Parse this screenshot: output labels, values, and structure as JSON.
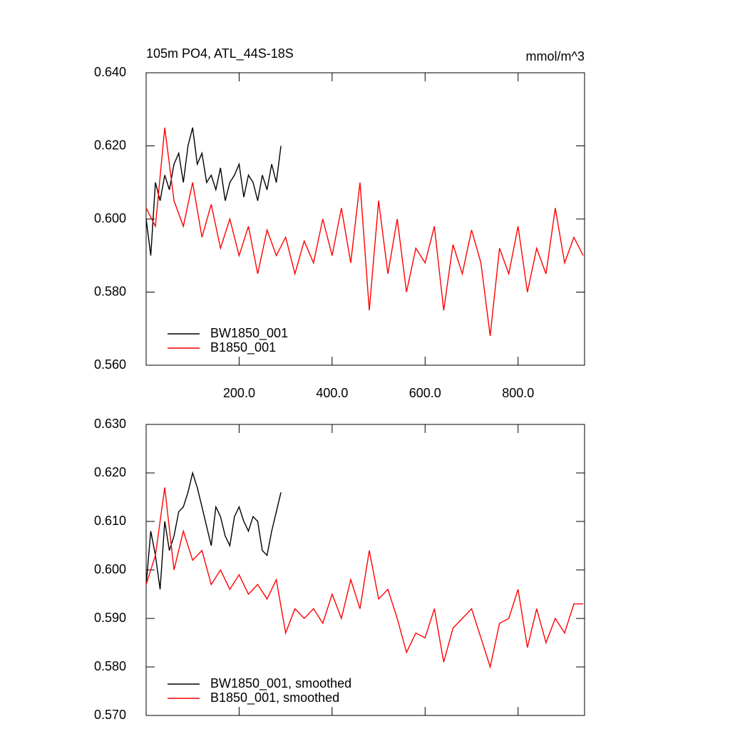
{
  "chart_data": [
    {
      "type": "line",
      "title": "105m PO4, ATL_44S-18S",
      "units": "mmol/m^3",
      "xlim": [
        0,
        943
      ],
      "xticks": [
        {
          "value": 200,
          "label": "200.0"
        },
        {
          "value": 400,
          "label": "400.0"
        },
        {
          "value": 600,
          "label": "600.0"
        },
        {
          "value": 800,
          "label": "800.0"
        }
      ],
      "ylim": [
        0.56,
        0.64
      ],
      "yticks": [
        {
          "value": 0.56,
          "label": "0.560"
        },
        {
          "value": 0.58,
          "label": "0.580"
        },
        {
          "value": 0.6,
          "label": "0.600"
        },
        {
          "value": 0.62,
          "label": "0.620"
        },
        {
          "value": 0.64,
          "label": "0.640"
        }
      ],
      "series": [
        {
          "name": "BW1850_001",
          "color": "#000000",
          "x": [
            0,
            10,
            20,
            30,
            40,
            50,
            60,
            70,
            80,
            90,
            100,
            110,
            120,
            130,
            140,
            150,
            160,
            170,
            180,
            190,
            200,
            210,
            220,
            230,
            240,
            250,
            260,
            270,
            280,
            290
          ],
          "values": [
            0.6,
            0.59,
            0.61,
            0.605,
            0.612,
            0.608,
            0.615,
            0.618,
            0.61,
            0.62,
            0.625,
            0.615,
            0.618,
            0.61,
            0.612,
            0.608,
            0.614,
            0.605,
            0.61,
            0.612,
            0.615,
            0.606,
            0.612,
            0.61,
            0.605,
            0.612,
            0.608,
            0.615,
            0.61,
            0.62
          ]
        },
        {
          "name": "B1850_001",
          "color": "#ff0000",
          "x": [
            0,
            20,
            40,
            60,
            80,
            100,
            120,
            140,
            160,
            180,
            200,
            220,
            240,
            260,
            280,
            300,
            320,
            340,
            360,
            380,
            400,
            420,
            440,
            460,
            480,
            500,
            520,
            540,
            560,
            580,
            600,
            620,
            640,
            660,
            680,
            700,
            720,
            740,
            760,
            780,
            800,
            820,
            840,
            860,
            880,
            900,
            920,
            940
          ],
          "values": [
            0.603,
            0.598,
            0.625,
            0.605,
            0.598,
            0.61,
            0.595,
            0.604,
            0.592,
            0.6,
            0.59,
            0.598,
            0.585,
            0.597,
            0.59,
            0.595,
            0.585,
            0.594,
            0.588,
            0.6,
            0.59,
            0.603,
            0.588,
            0.61,
            0.575,
            0.605,
            0.585,
            0.6,
            0.58,
            0.592,
            0.588,
            0.598,
            0.575,
            0.593,
            0.585,
            0.597,
            0.588,
            0.568,
            0.592,
            0.585,
            0.598,
            0.58,
            0.592,
            0.585,
            0.603,
            0.588,
            0.595,
            0.59
          ]
        }
      ]
    },
    {
      "type": "line",
      "xlim": [
        0,
        943
      ],
      "xticks": [
        200,
        400,
        600,
        800
      ],
      "ylim": [
        0.57,
        0.63
      ],
      "yticks": [
        {
          "value": 0.57,
          "label": "0.570"
        },
        {
          "value": 0.58,
          "label": "0.580"
        },
        {
          "value": 0.59,
          "label": "0.590"
        },
        {
          "value": 0.6,
          "label": "0.600"
        },
        {
          "value": 0.61,
          "label": "0.610"
        },
        {
          "value": 0.62,
          "label": "0.620"
        },
        {
          "value": 0.63,
          "label": "0.630"
        }
      ],
      "series": [
        {
          "name": "BW1850_001, smoothed",
          "color": "#000000",
          "x": [
            0,
            10,
            20,
            30,
            40,
            50,
            60,
            70,
            80,
            90,
            100,
            110,
            120,
            130,
            140,
            150,
            160,
            170,
            180,
            190,
            200,
            210,
            220,
            230,
            240,
            250,
            260,
            270,
            280,
            290
          ],
          "values": [
            0.597,
            0.608,
            0.603,
            0.596,
            0.61,
            0.604,
            0.607,
            0.612,
            0.613,
            0.616,
            0.62,
            0.617,
            0.613,
            0.609,
            0.605,
            0.613,
            0.611,
            0.607,
            0.605,
            0.611,
            0.613,
            0.61,
            0.608,
            0.611,
            0.61,
            0.604,
            0.603,
            0.608,
            0.612,
            0.616
          ]
        },
        {
          "name": "B1850_001, smoothed",
          "color": "#ff0000",
          "x": [
            0,
            20,
            40,
            60,
            80,
            100,
            120,
            140,
            160,
            180,
            200,
            220,
            240,
            260,
            280,
            300,
            320,
            340,
            360,
            380,
            400,
            420,
            440,
            460,
            480,
            500,
            520,
            540,
            560,
            580,
            600,
            620,
            640,
            660,
            680,
            700,
            720,
            740,
            760,
            780,
            800,
            820,
            840,
            860,
            880,
            900,
            920,
            940
          ],
          "values": [
            0.597,
            0.603,
            0.617,
            0.6,
            0.608,
            0.602,
            0.604,
            0.597,
            0.6,
            0.596,
            0.599,
            0.595,
            0.597,
            0.594,
            0.598,
            0.587,
            0.592,
            0.59,
            0.592,
            0.589,
            0.595,
            0.59,
            0.598,
            0.592,
            0.604,
            0.594,
            0.596,
            0.59,
            0.583,
            0.587,
            0.586,
            0.592,
            0.581,
            0.588,
            0.59,
            0.592,
            0.586,
            0.58,
            0.589,
            0.59,
            0.596,
            0.584,
            0.592,
            0.585,
            0.59,
            0.587,
            0.593,
            0.593
          ]
        }
      ]
    }
  ]
}
